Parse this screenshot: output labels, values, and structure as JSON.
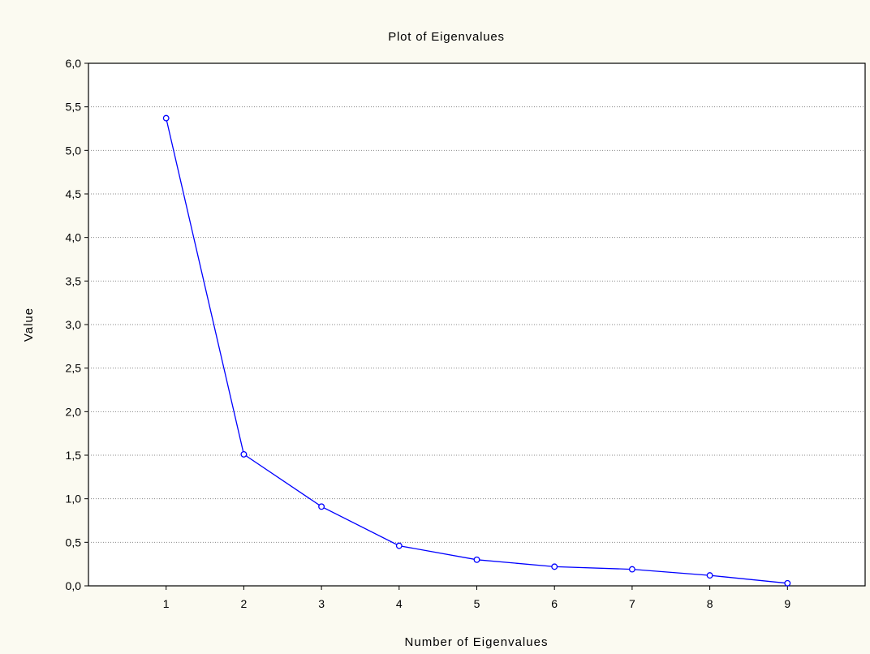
{
  "chart_data": {
    "type": "line",
    "title": "Plot of Eigenvalues",
    "xlabel": "Number of Eigenvalues",
    "ylabel": "Value",
    "x": [
      1,
      2,
      3,
      4,
      5,
      6,
      7,
      8,
      9
    ],
    "xlim": [
      0,
      10
    ],
    "ylim": [
      0,
      6
    ],
    "y_ticks": [
      "0,0",
      "0,5",
      "1,0",
      "1,5",
      "2,0",
      "2,5",
      "3,0",
      "3,5",
      "4,0",
      "4,5",
      "5,0",
      "5,5",
      "6,0"
    ],
    "x_ticks": [
      "1",
      "2",
      "3",
      "4",
      "5",
      "6",
      "7",
      "8",
      "9"
    ],
    "grid": true,
    "series": [
      {
        "values": [
          5.37,
          1.51,
          0.91,
          0.46,
          0.3,
          0.22,
          0.19,
          0.12,
          0.03
        ],
        "color": "#0000ff",
        "marker": "open-circle"
      }
    ]
  }
}
